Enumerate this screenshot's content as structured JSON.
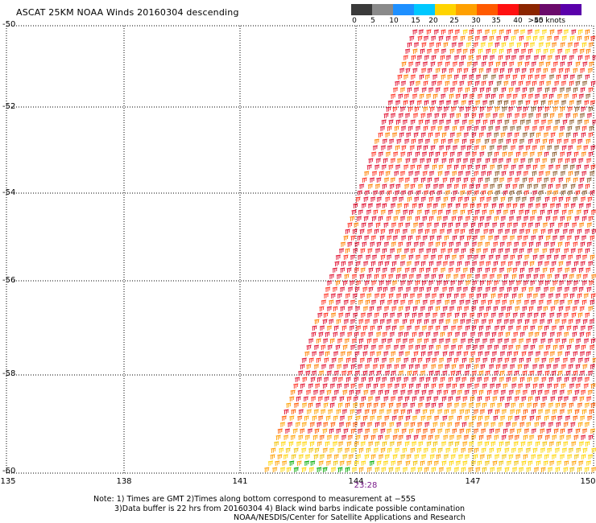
{
  "title": "ASCAT 25KM NOAA Winds 20160304 descending",
  "colorbar": {
    "ticks": [
      "0",
      "5",
      "10",
      "15",
      "20",
      "25",
      "30",
      "35",
      "40",
      "45",
      ">50 knots"
    ],
    "colors": [
      "#3a3a3a",
      "#8a8a8a",
      "#1e90ff",
      "#00c8ff",
      "#ffd400",
      "#ffa000",
      "#ff5a00",
      "#ff1010",
      "#8b2500",
      "#6a0a6a",
      "#5a00aa"
    ]
  },
  "axes": {
    "lat_labels": [
      "-50",
      "-52",
      "-54",
      "-56",
      "-58",
      "-60"
    ],
    "lon_labels": [
      "135",
      "138",
      "141",
      "144",
      "147",
      "150"
    ]
  },
  "time_label": "23:28",
  "notes": {
    "line1": "Note: 1) Times are GMT 2)Times along bottom correspond to measurement at −55S",
    "line2": "3)Data buffer is 22 hrs from 20160304 4) Black wind barbs indicate possible contamination",
    "line3": "NOAA/NESDIS/Center for Satellite Applications and Research"
  }
}
